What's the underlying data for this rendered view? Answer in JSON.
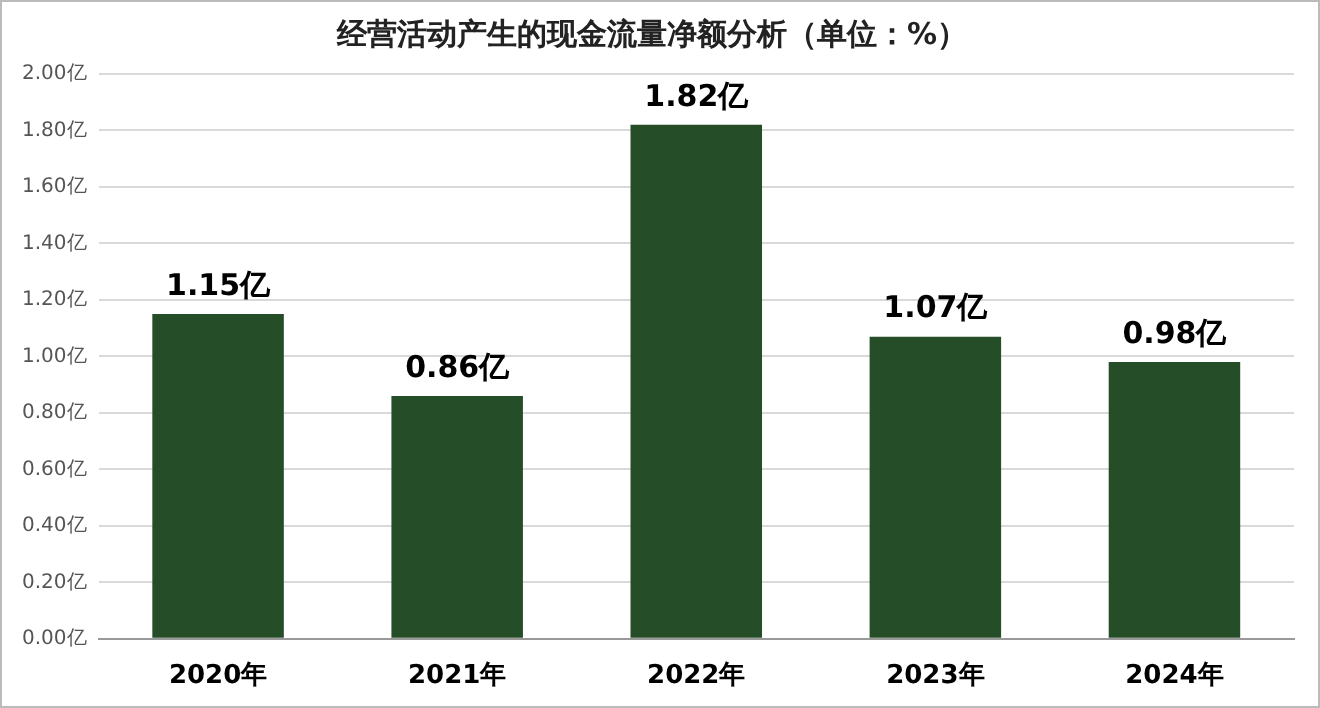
{
  "chart_data": {
    "type": "bar",
    "title": "经营活动产生的现金流量净额分析（单位：%）",
    "categories": [
      "2020年",
      "2021年",
      "2022年",
      "2023年",
      "2024年"
    ],
    "series": [
      {
        "color": "#254d27",
        "values": [
          1.15,
          0.86,
          1.82,
          1.07,
          0.98
        ]
      }
    ],
    "value_labels": [
      "1.15亿",
      "0.86亿",
      "1.82亿",
      "1.07亿",
      "0.98亿"
    ],
    "ylim": [
      0,
      2
    ],
    "yticks": [
      {
        "value": 0,
        "label": "0.00亿"
      },
      {
        "value": 0.2,
        "label": "0.20亿"
      },
      {
        "value": 0.4,
        "label": "0.40亿"
      },
      {
        "value": 0.6,
        "label": "0.60亿"
      },
      {
        "value": 0.8,
        "label": "0.80亿"
      },
      {
        "value": 1,
        "label": "1.00亿"
      },
      {
        "value": 1.2,
        "label": "1.20亿"
      },
      {
        "value": 1.4,
        "label": "1.40亿"
      },
      {
        "value": 1.6,
        "label": "1.60亿"
      },
      {
        "value": 1.8,
        "label": "1.80亿"
      },
      {
        "value": 2,
        "label": "2.00亿"
      }
    ],
    "grid": "y",
    "legend": false
  }
}
